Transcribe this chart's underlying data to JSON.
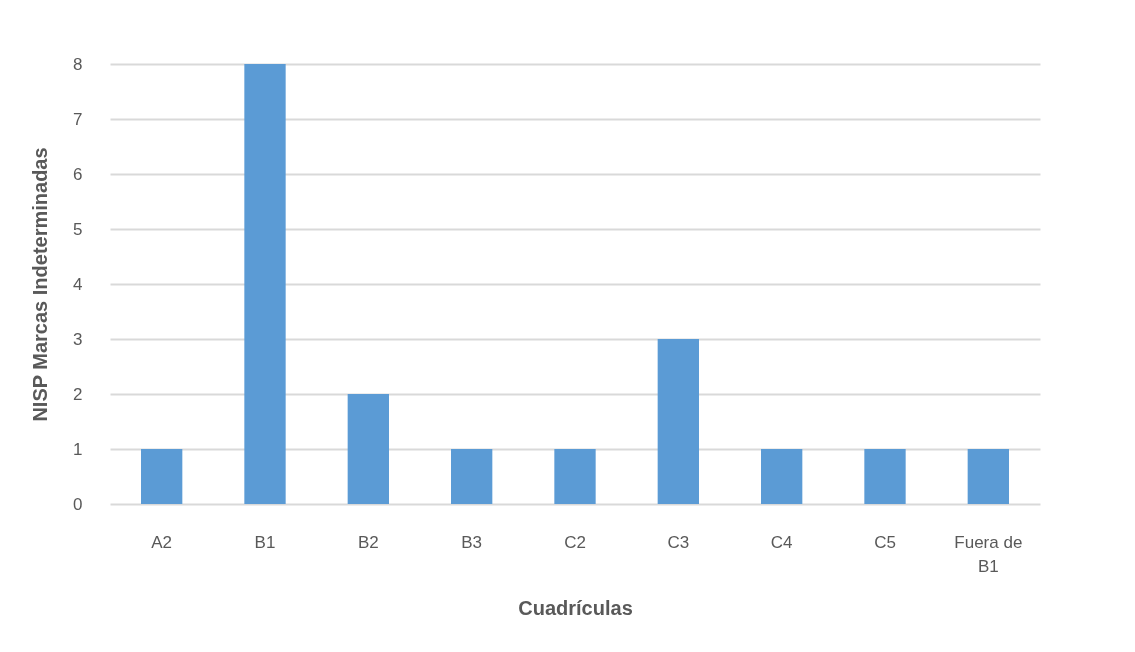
{
  "chart_data": {
    "type": "bar",
    "categories": [
      "A2",
      "B1",
      "B2",
      "B3",
      "C2",
      "C3",
      "C4",
      "C5",
      "Fuera de B1"
    ],
    "values": [
      1,
      8,
      2,
      1,
      1,
      3,
      1,
      1,
      1
    ],
    "color": "#5b9bd5",
    "xlabel": "Cuadrículas",
    "ylabel": "NISP Marcas Indeterminadas",
    "ylim": [
      0,
      8
    ],
    "yticks": [
      0,
      1,
      2,
      3,
      4,
      5,
      6,
      7,
      8
    ],
    "grid": "y"
  }
}
